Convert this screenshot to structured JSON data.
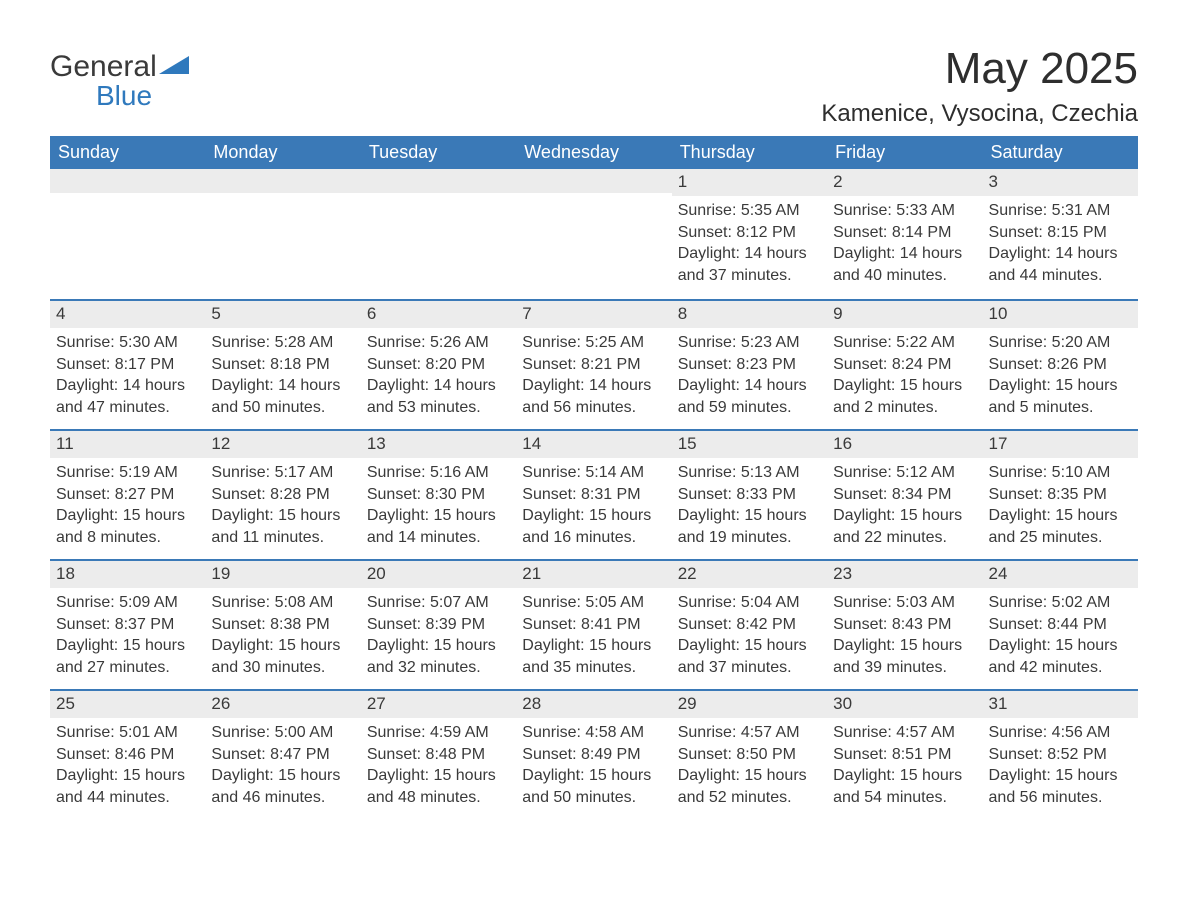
{
  "logo": {
    "word1": "General",
    "word2": "Blue"
  },
  "title": "May 2025",
  "subtitle": "Kamenice, Vysocina, Czechia",
  "colors": {
    "header_bg": "#3a79b7",
    "week_border": "#3a79b7",
    "daynum_bg": "#ececec",
    "text": "#3a3a3a",
    "logo_blue": "#2f79bd",
    "background": "#ffffff"
  },
  "dow": [
    "Sunday",
    "Monday",
    "Tuesday",
    "Wednesday",
    "Thursday",
    "Friday",
    "Saturday"
  ],
  "weeks": [
    [
      null,
      null,
      null,
      null,
      {
        "n": "1",
        "sunrise": "5:35 AM",
        "sunset": "8:12 PM",
        "dl": "14 hours and 37 minutes."
      },
      {
        "n": "2",
        "sunrise": "5:33 AM",
        "sunset": "8:14 PM",
        "dl": "14 hours and 40 minutes."
      },
      {
        "n": "3",
        "sunrise": "5:31 AM",
        "sunset": "8:15 PM",
        "dl": "14 hours and 44 minutes."
      }
    ],
    [
      {
        "n": "4",
        "sunrise": "5:30 AM",
        "sunset": "8:17 PM",
        "dl": "14 hours and 47 minutes."
      },
      {
        "n": "5",
        "sunrise": "5:28 AM",
        "sunset": "8:18 PM",
        "dl": "14 hours and 50 minutes."
      },
      {
        "n": "6",
        "sunrise": "5:26 AM",
        "sunset": "8:20 PM",
        "dl": "14 hours and 53 minutes."
      },
      {
        "n": "7",
        "sunrise": "5:25 AM",
        "sunset": "8:21 PM",
        "dl": "14 hours and 56 minutes."
      },
      {
        "n": "8",
        "sunrise": "5:23 AM",
        "sunset": "8:23 PM",
        "dl": "14 hours and 59 minutes."
      },
      {
        "n": "9",
        "sunrise": "5:22 AM",
        "sunset": "8:24 PM",
        "dl": "15 hours and 2 minutes."
      },
      {
        "n": "10",
        "sunrise": "5:20 AM",
        "sunset": "8:26 PM",
        "dl": "15 hours and 5 minutes."
      }
    ],
    [
      {
        "n": "11",
        "sunrise": "5:19 AM",
        "sunset": "8:27 PM",
        "dl": "15 hours and 8 minutes."
      },
      {
        "n": "12",
        "sunrise": "5:17 AM",
        "sunset": "8:28 PM",
        "dl": "15 hours and 11 minutes."
      },
      {
        "n": "13",
        "sunrise": "5:16 AM",
        "sunset": "8:30 PM",
        "dl": "15 hours and 14 minutes."
      },
      {
        "n": "14",
        "sunrise": "5:14 AM",
        "sunset": "8:31 PM",
        "dl": "15 hours and 16 minutes."
      },
      {
        "n": "15",
        "sunrise": "5:13 AM",
        "sunset": "8:33 PM",
        "dl": "15 hours and 19 minutes."
      },
      {
        "n": "16",
        "sunrise": "5:12 AM",
        "sunset": "8:34 PM",
        "dl": "15 hours and 22 minutes."
      },
      {
        "n": "17",
        "sunrise": "5:10 AM",
        "sunset": "8:35 PM",
        "dl": "15 hours and 25 minutes."
      }
    ],
    [
      {
        "n": "18",
        "sunrise": "5:09 AM",
        "sunset": "8:37 PM",
        "dl": "15 hours and 27 minutes."
      },
      {
        "n": "19",
        "sunrise": "5:08 AM",
        "sunset": "8:38 PM",
        "dl": "15 hours and 30 minutes."
      },
      {
        "n": "20",
        "sunrise": "5:07 AM",
        "sunset": "8:39 PM",
        "dl": "15 hours and 32 minutes."
      },
      {
        "n": "21",
        "sunrise": "5:05 AM",
        "sunset": "8:41 PM",
        "dl": "15 hours and 35 minutes."
      },
      {
        "n": "22",
        "sunrise": "5:04 AM",
        "sunset": "8:42 PM",
        "dl": "15 hours and 37 minutes."
      },
      {
        "n": "23",
        "sunrise": "5:03 AM",
        "sunset": "8:43 PM",
        "dl": "15 hours and 39 minutes."
      },
      {
        "n": "24",
        "sunrise": "5:02 AM",
        "sunset": "8:44 PM",
        "dl": "15 hours and 42 minutes."
      }
    ],
    [
      {
        "n": "25",
        "sunrise": "5:01 AM",
        "sunset": "8:46 PM",
        "dl": "15 hours and 44 minutes."
      },
      {
        "n": "26",
        "sunrise": "5:00 AM",
        "sunset": "8:47 PM",
        "dl": "15 hours and 46 minutes."
      },
      {
        "n": "27",
        "sunrise": "4:59 AM",
        "sunset": "8:48 PM",
        "dl": "15 hours and 48 minutes."
      },
      {
        "n": "28",
        "sunrise": "4:58 AM",
        "sunset": "8:49 PM",
        "dl": "15 hours and 50 minutes."
      },
      {
        "n": "29",
        "sunrise": "4:57 AM",
        "sunset": "8:50 PM",
        "dl": "15 hours and 52 minutes."
      },
      {
        "n": "30",
        "sunrise": "4:57 AM",
        "sunset": "8:51 PM",
        "dl": "15 hours and 54 minutes."
      },
      {
        "n": "31",
        "sunrise": "4:56 AM",
        "sunset": "8:52 PM",
        "dl": "15 hours and 56 minutes."
      }
    ]
  ],
  "labels": {
    "sunrise": "Sunrise:",
    "sunset": "Sunset:",
    "daylight": "Daylight:"
  }
}
